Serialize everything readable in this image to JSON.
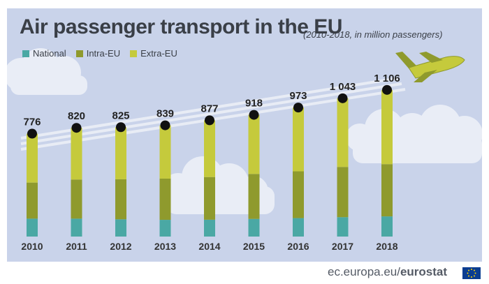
{
  "title": "Air passenger transport in the EU",
  "subtitle": "(2010-2018, in million passengers)",
  "footer": {
    "site": "ec.europa.eu/",
    "brand": "eurostat"
  },
  "colors": {
    "background": "#c9d3ea",
    "National": "#4aa8a4",
    "Intra-EU": "#8f9a2d",
    "Extra-EU": "#c5ca3c",
    "dot": "#111111"
  },
  "chart_data": {
    "type": "bar",
    "stacked": true,
    "title": "Air passenger transport in the EU",
    "subtitle": "(2010-2018, in million passengers)",
    "categories": [
      "2010",
      "2011",
      "2012",
      "2013",
      "2014",
      "2015",
      "2016",
      "2017",
      "2018"
    ],
    "totals": [
      776,
      820,
      825,
      839,
      877,
      918,
      973,
      1043,
      1106
    ],
    "total_labels": [
      "776",
      "820",
      "825",
      "839",
      "877",
      "918",
      "973",
      "1 043",
      "1 106"
    ],
    "series": [
      {
        "name": "National",
        "values": [
          135,
          135,
          130,
          126,
          127,
          133,
          139,
          146,
          152
        ]
      },
      {
        "name": "Intra-EU",
        "values": [
          272,
          295,
          302,
          311,
          322,
          339,
          353,
          379,
          394
        ]
      },
      {
        "name": "Extra-EU",
        "values": [
          369,
          390,
          393,
          402,
          428,
          446,
          481,
          518,
          560
        ]
      }
    ],
    "legend": [
      "National",
      "Intra-EU",
      "Extra-EU"
    ],
    "legend_position": "top-left",
    "ylim": [
      0,
      1150
    ],
    "grid": false,
    "xlabel": "",
    "ylabel": ""
  }
}
